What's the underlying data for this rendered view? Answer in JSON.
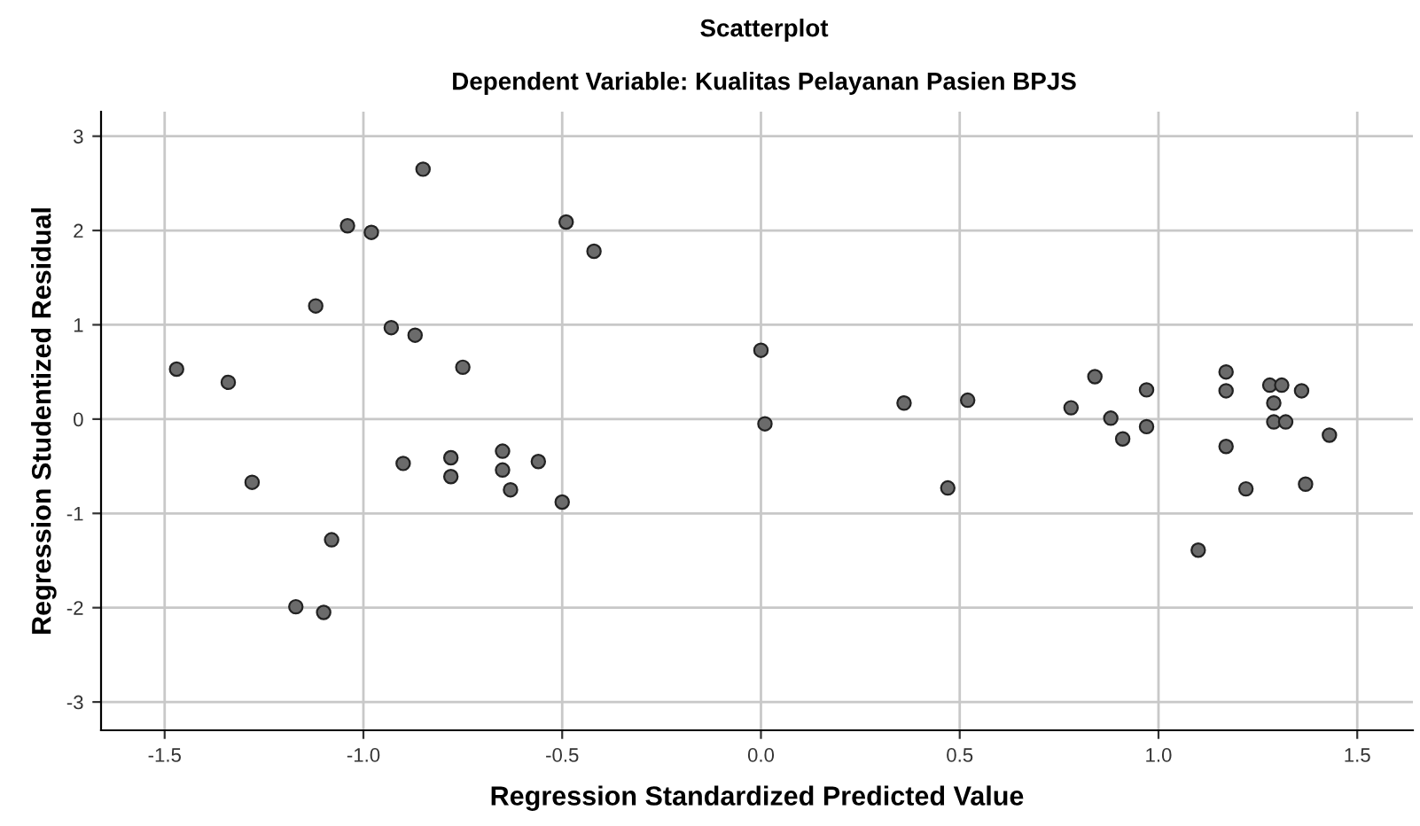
{
  "chart_data": {
    "type": "scatter",
    "title": "Scatterplot",
    "subtitle": "Dependent Variable: Kualitas Pelayanan Pasien BPJS",
    "xlabel": "Regression Standardized Predicted Value",
    "ylabel": "Regression Studentized Residual",
    "x": [
      -1.47,
      -1.34,
      -1.28,
      -1.12,
      -1.08,
      -1.17,
      -1.1,
      -1.04,
      -0.98,
      -0.93,
      -0.87,
      -0.85,
      -0.9,
      -0.78,
      -0.78,
      -0.75,
      -0.65,
      -0.65,
      -0.63,
      -0.56,
      -0.5,
      -0.49,
      -0.42,
      0.0,
      0.01,
      0.36,
      0.47,
      0.52,
      0.78,
      0.84,
      0.88,
      0.91,
      0.97,
      0.97,
      1.1,
      1.17,
      1.17,
      1.17,
      1.22,
      1.28,
      1.31,
      1.29,
      1.29,
      1.32,
      1.36,
      1.37,
      1.43
    ],
    "values": [
      0.53,
      0.39,
      -0.67,
      1.2,
      -1.28,
      -1.99,
      -2.05,
      2.05,
      1.98,
      0.97,
      0.89,
      2.65,
      -0.47,
      -0.41,
      -0.61,
      0.55,
      -0.34,
      -0.54,
      -0.75,
      -0.45,
      -0.88,
      2.09,
      1.78,
      0.73,
      -0.05,
      0.17,
      -0.73,
      0.2,
      0.12,
      0.45,
      0.01,
      -0.21,
      0.31,
      -0.08,
      -1.39,
      0.5,
      0.3,
      -0.29,
      -0.74,
      0.36,
      0.36,
      0.17,
      -0.03,
      -0.03,
      0.3,
      -0.69,
      -0.17
    ],
    "color": "#6b6b6b",
    "marker": "circle",
    "grid": true,
    "xlim": [
      -1.66,
      1.64
    ],
    "ylim": [
      -3.3,
      3.26
    ],
    "xticks": [
      {
        "value": -1.5,
        "label": "-1.5"
      },
      {
        "value": -1.0,
        "label": "-1.0"
      },
      {
        "value": -0.5,
        "label": "-0.5"
      },
      {
        "value": 0.0,
        "label": "0.0"
      },
      {
        "value": 0.5,
        "label": "0.5"
      },
      {
        "value": 1.0,
        "label": "1.0"
      },
      {
        "value": 1.5,
        "label": "1.5"
      }
    ],
    "yticks": [
      {
        "value": -3,
        "label": "-3"
      },
      {
        "value": -2,
        "label": "-2"
      },
      {
        "value": -1,
        "label": "-1"
      },
      0,
      1,
      2,
      3
    ]
  }
}
